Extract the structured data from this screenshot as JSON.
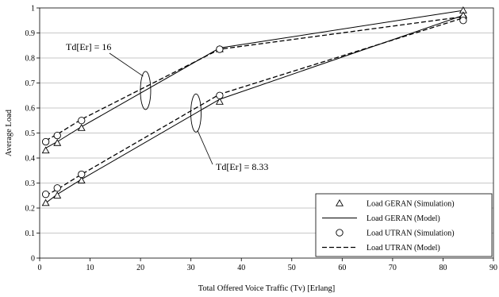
{
  "chart_data": {
    "type": "line",
    "xlabel": "Total Offered Voice Traffic (Tv) [Erlang]",
    "ylabel": "Average Load",
    "xlim": [
      0,
      90
    ],
    "ylim": [
      0,
      1
    ],
    "x_ticks": [
      "0",
      "10",
      "20",
      "30",
      "40",
      "50",
      "60",
      "70",
      "80",
      "90"
    ],
    "y_ticks": [
      "0",
      "0.1",
      "0.2",
      "0.3",
      "0.4",
      "0.5",
      "0.6",
      "0.7",
      "0.8",
      "0.9",
      "1"
    ],
    "grid": true,
    "legend_position": "bottom-right",
    "annotations": [
      {
        "text": "Td[Er] = 16",
        "x": 21,
        "y": 0.67
      },
      {
        "text": "Td[Er] = 8.33",
        "x": 31,
        "y": 0.58
      }
    ],
    "series": [
      {
        "name": "Load GERAN (Simulation)",
        "style": "triangle-marker",
        "group": "td16",
        "points": [
          [
            1.2,
            0.43
          ],
          [
            3.5,
            0.46
          ],
          [
            8.3,
            0.52
          ],
          [
            35.7,
            0.835
          ],
          [
            84,
            0.99
          ]
        ]
      },
      {
        "name": "Load GERAN (Model)",
        "style": "solid",
        "group": "td16",
        "points": [
          [
            1.2,
            0.44
          ],
          [
            3.5,
            0.465
          ],
          [
            8.3,
            0.525
          ],
          [
            35.7,
            0.84
          ],
          [
            84,
            0.99
          ]
        ]
      },
      {
        "name": "Load UTRAN (Simulation)",
        "style": "circle-marker",
        "group": "td16",
        "points": [
          [
            1.2,
            0.465
          ],
          [
            3.5,
            0.49
          ],
          [
            8.3,
            0.55
          ],
          [
            35.7,
            0.835
          ],
          [
            84,
            0.96
          ]
        ]
      },
      {
        "name": "Load UTRAN (Model)",
        "style": "dashed",
        "group": "td16",
        "points": [
          [
            1.2,
            0.47
          ],
          [
            3.5,
            0.495
          ],
          [
            8.3,
            0.555
          ],
          [
            35.7,
            0.835
          ],
          [
            84,
            0.965
          ]
        ]
      },
      {
        "name": "Load GERAN (Simulation)",
        "style": "triangle-marker",
        "group": "td833",
        "points": [
          [
            1.2,
            0.22
          ],
          [
            3.5,
            0.25
          ],
          [
            8.3,
            0.31
          ],
          [
            35.7,
            0.625
          ],
          [
            84,
            0.97
          ]
        ]
      },
      {
        "name": "Load GERAN (Model)",
        "style": "solid",
        "group": "td833",
        "points": [
          [
            1.2,
            0.22
          ],
          [
            3.5,
            0.255
          ],
          [
            8.3,
            0.315
          ],
          [
            35.7,
            0.635
          ],
          [
            84,
            0.97
          ]
        ]
      },
      {
        "name": "Load UTRAN (Simulation)",
        "style": "circle-marker",
        "group": "td833",
        "points": [
          [
            1.2,
            0.255
          ],
          [
            3.5,
            0.28
          ],
          [
            8.3,
            0.335
          ],
          [
            35.7,
            0.65
          ],
          [
            84,
            0.95
          ]
        ]
      },
      {
        "name": "Load UTRAN (Model)",
        "style": "dashed",
        "group": "td833",
        "points": [
          [
            1.2,
            0.25
          ],
          [
            3.5,
            0.275
          ],
          [
            8.3,
            0.335
          ],
          [
            35.7,
            0.655
          ],
          [
            84,
            0.96
          ]
        ]
      }
    ],
    "legend": [
      {
        "label": "Load GERAN (Simulation)",
        "style": "triangle-marker"
      },
      {
        "label": "Load GERAN (Model)",
        "style": "solid"
      },
      {
        "label": "Load UTRAN (Simulation)",
        "style": "circle-marker"
      },
      {
        "label": "Load UTRAN (Model)",
        "style": "dashed"
      }
    ]
  }
}
